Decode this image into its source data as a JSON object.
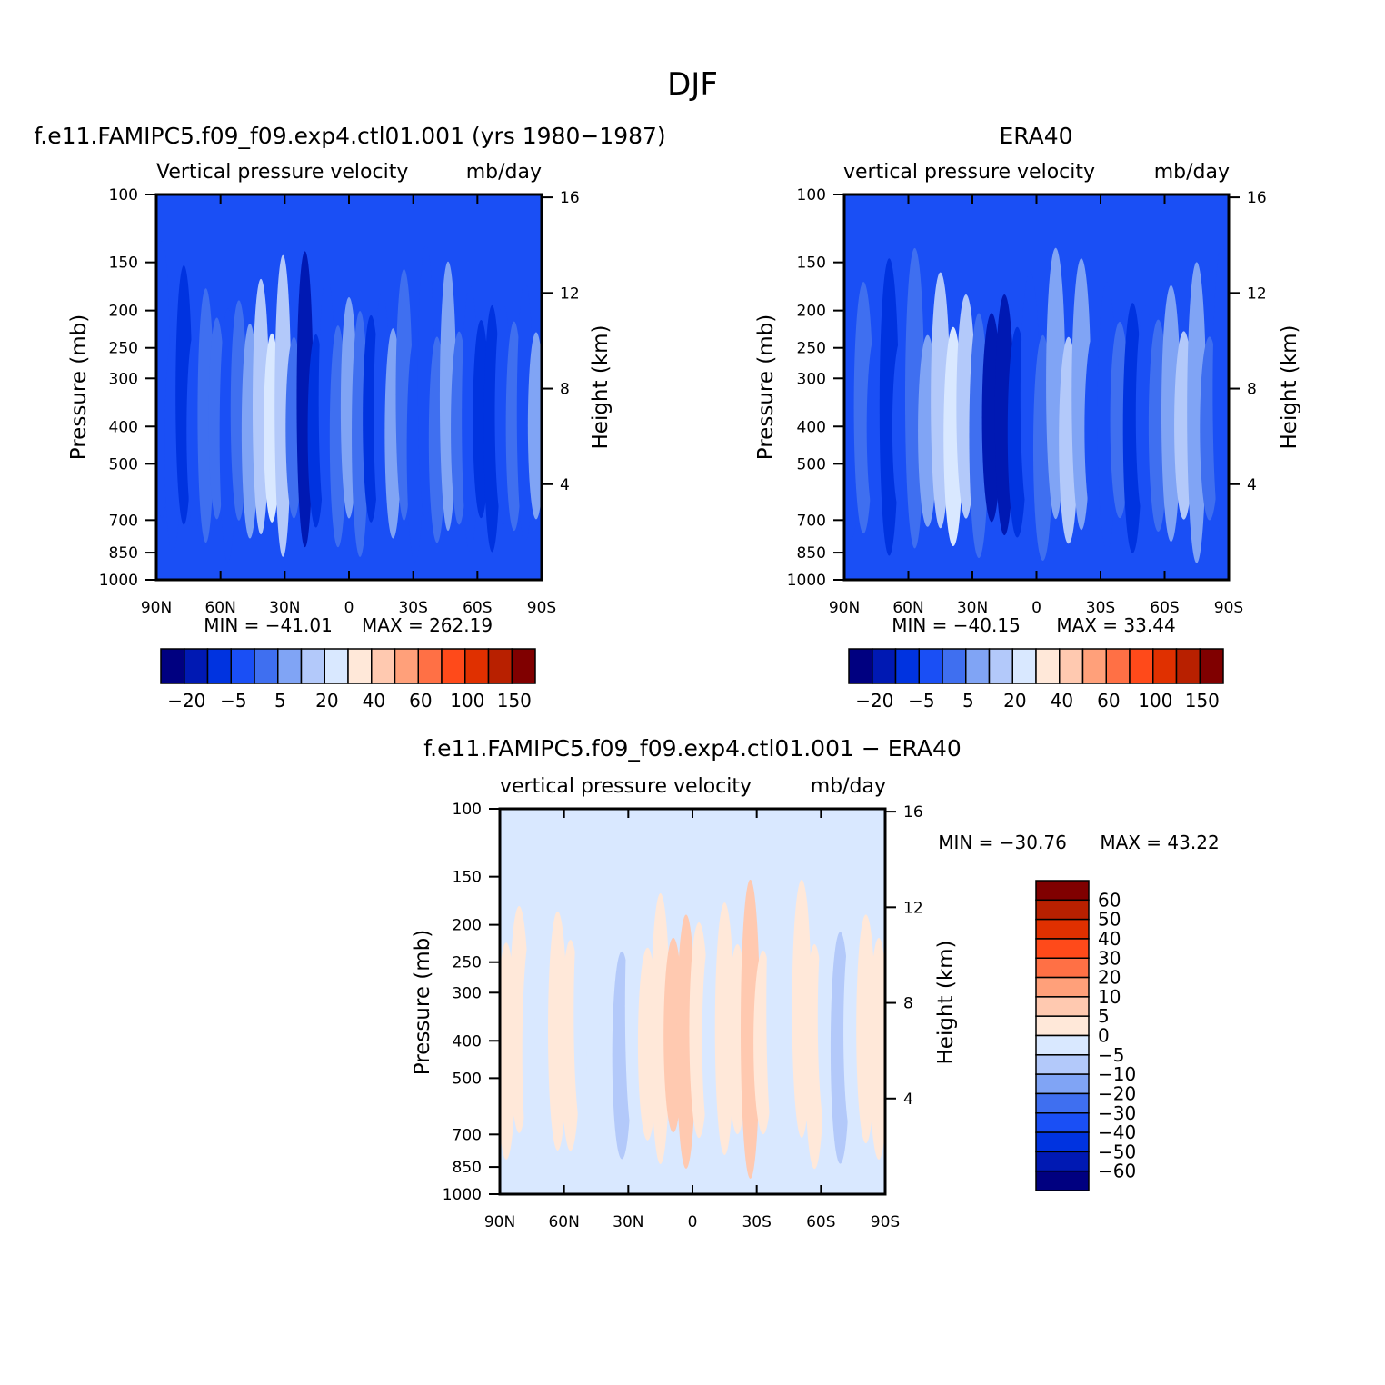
{
  "main_title": "DJF",
  "palette": {
    "abs": [
      "#000080",
      "#0019b3",
      "#0033e0",
      "#1a4ff5",
      "#3f6ff0",
      "#80a4f5",
      "#b3c9fa",
      "#d9e8ff",
      "#ffe8d9",
      "#ffc9b0",
      "#ffa07a",
      "#ff7045",
      "#ff4a1a",
      "#e03000",
      "#b82000",
      "#800000"
    ],
    "diff": [
      "#000080",
      "#0019b3",
      "#0033e0",
      "#1a4ff5",
      "#3f6ff0",
      "#80a4f5",
      "#b3c9fa",
      "#d9e8ff",
      "#ffe8d9",
      "#ffc9b0",
      "#ffa07a",
      "#ff7045",
      "#ff4a1a",
      "#e03000",
      "#b82000",
      "#800000"
    ]
  },
  "chart_data": [
    {
      "id": "model",
      "type": "heatmap",
      "title": "f.e11.FAMIPC5.f09_f09.exp4.ctl01.001 (yrs 1980-1987)",
      "subtitle_left": "Vertical pressure velocity",
      "subtitle_right": "mb/day",
      "xlabel": "",
      "ylabel": "Pressure (mb)",
      "ylabel_right": "Height (km)",
      "x_ticks": [
        "90N",
        "60N",
        "30N",
        "0",
        "30S",
        "60S",
        "90S"
      ],
      "y_ticks": [
        "100",
        "150",
        "200",
        "250",
        "300",
        "400",
        "500",
        "700",
        "850",
        "1000"
      ],
      "y_right_ticks": [
        "16",
        "12",
        "8",
        "4"
      ],
      "min_label": "MIN = -41.01",
      "max_label": "MAX = 262.19",
      "colorbar_labels": [
        "-20",
        "-5",
        "5",
        "20",
        "40",
        "60",
        "100",
        "150"
      ],
      "bands": [
        3,
        3,
        2,
        3,
        4,
        4,
        3,
        4,
        5,
        6,
        7,
        6,
        4,
        1,
        2,
        3,
        4,
        5,
        4,
        2,
        3,
        5,
        4,
        3,
        3,
        4,
        5,
        4,
        3,
        2,
        2,
        3,
        4,
        3,
        5
      ]
    },
    {
      "id": "era40",
      "type": "heatmap",
      "title": "ERA40",
      "subtitle_left": "vertical pressure velocity",
      "subtitle_right": "mb/day",
      "xlabel": "",
      "ylabel": "Pressure (mb)",
      "ylabel_right": "Height (km)",
      "x_ticks": [
        "90N",
        "60N",
        "30N",
        "0",
        "30S",
        "60S",
        "90S"
      ],
      "y_ticks": [
        "100",
        "150",
        "200",
        "250",
        "300",
        "400",
        "500",
        "700",
        "850",
        "1000"
      ],
      "y_right_ticks": [
        "16",
        "12",
        "8",
        "4"
      ],
      "min_label": "MIN = -40.15",
      "max_label": "MAX = 33.44",
      "colorbar_labels": [
        "-20",
        "-5",
        "5",
        "20",
        "40",
        "60",
        "100",
        "150"
      ],
      "bands": [
        3,
        4,
        3,
        2,
        3,
        4,
        5,
        6,
        7,
        6,
        4,
        1,
        1,
        2,
        3,
        4,
        5,
        6,
        5,
        3,
        3,
        4,
        2,
        3,
        4,
        5,
        6,
        5,
        4,
        3
      ]
    },
    {
      "id": "diff",
      "type": "heatmap",
      "title": "f.e11.FAMIPC5.f09_f09.exp4.ctl01.001 - ERA40",
      "subtitle_left": "vertical pressure velocity",
      "subtitle_right": "mb/day",
      "xlabel": "",
      "ylabel": "Pressure (mb)",
      "ylabel_right": "Height (km)",
      "x_ticks": [
        "90N",
        "60N",
        "30N",
        "0",
        "30S",
        "60S",
        "90S"
      ],
      "y_ticks": [
        "100",
        "150",
        "200",
        "250",
        "300",
        "400",
        "500",
        "700",
        "850",
        "1000"
      ],
      "y_right_ticks": [
        "16",
        "12",
        "8",
        "4"
      ],
      "min_label": "MIN = -30.76",
      "max_label": "MAX = 43.22",
      "colorbar_labels": [
        "60",
        "50",
        "40",
        "30",
        "20",
        "10",
        "5",
        "0",
        "-5",
        "-10",
        "-20",
        "-30",
        "-40",
        "-50",
        "-60"
      ],
      "bands": [
        8,
        8,
        7,
        7,
        8,
        8,
        7,
        7,
        7,
        6,
        7,
        8,
        8,
        9,
        9,
        8,
        7,
        8,
        8,
        9,
        8,
        7,
        7,
        8,
        8,
        7,
        6,
        7,
        8,
        8
      ]
    }
  ]
}
